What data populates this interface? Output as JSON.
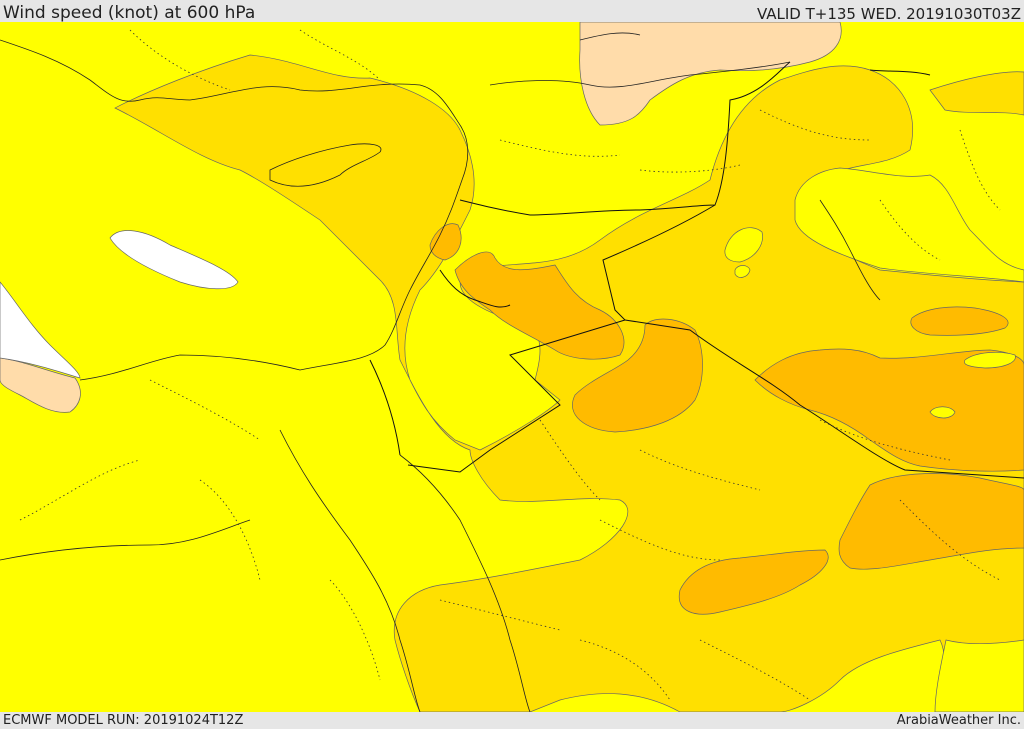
{
  "header": {
    "title": "Wind speed (knot) at 600 hPa",
    "valid": "VALID T+135 WED. 20191030T03Z"
  },
  "footer": {
    "model_run": "ECMWF MODEL RUN: 20191024T12Z",
    "credit": "ArabiaWeather Inc."
  },
  "map": {
    "field": "wind speed",
    "level_hpa": 600,
    "region": "Eastern Mediterranean / Middle East",
    "colors": {
      "calm_white": "#ffffff",
      "light_peach": "#ffdcaa",
      "yellow": "#ffff00",
      "gold": "#ffe000",
      "orange": "#ffbb00",
      "outline": "#555555"
    }
  }
}
